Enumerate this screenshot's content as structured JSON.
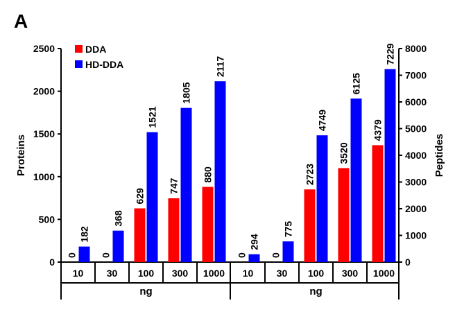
{
  "panel_label": "A",
  "chart_data": {
    "type": "bar",
    "panel": "A",
    "legend": {
      "position": "top-left",
      "entries": [
        {
          "name": "DDA",
          "color": "#ff0000"
        },
        {
          "name": "HD-DDA",
          "color": "#0000ff"
        }
      ]
    },
    "colors": {
      "DDA": "#ff0000",
      "HD-DDA": "#0000ff"
    },
    "grid": false,
    "groups": [
      {
        "name": "proteins",
        "axis": "left",
        "ylabel": "Proteins",
        "xlabel": "ng",
        "ylim": [
          0,
          2500
        ],
        "yticks": [
          "0",
          "500",
          "1000",
          "1500",
          "2000",
          "2500"
        ],
        "categories": [
          "10",
          "30",
          "100",
          "300",
          "1000"
        ],
        "series": [
          {
            "name": "DDA",
            "values": [
              0,
              0,
              629,
              747,
              880
            ],
            "labels": [
              "0",
              "0",
              "629",
              "747",
              "880"
            ]
          },
          {
            "name": "HD-DDA",
            "values": [
              182,
              368,
              1521,
              1805,
              2117
            ],
            "labels": [
              "182",
              "368",
              "1521",
              "1805",
              "2117"
            ]
          }
        ]
      },
      {
        "name": "peptides",
        "axis": "right",
        "ylabel": "Peptides",
        "xlabel": "ng",
        "ylim": [
          0,
          8000
        ],
        "yticks": [
          "0",
          "1000",
          "2000",
          "3000",
          "4000",
          "5000",
          "6000",
          "7000",
          "8000"
        ],
        "categories": [
          "10",
          "30",
          "100",
          "300",
          "1000"
        ],
        "series": [
          {
            "name": "DDA",
            "values": [
              0,
              0,
              2723,
              3520,
              4379
            ],
            "labels": [
              "0",
              "0",
              "2723",
              "3520",
              "4379"
            ]
          },
          {
            "name": "HD-DDA",
            "values": [
              294,
              775,
              4749,
              6125,
              7229
            ],
            "labels": [
              "294",
              "775",
              "4749",
              "6125",
              "7229"
            ]
          }
        ]
      }
    ]
  }
}
